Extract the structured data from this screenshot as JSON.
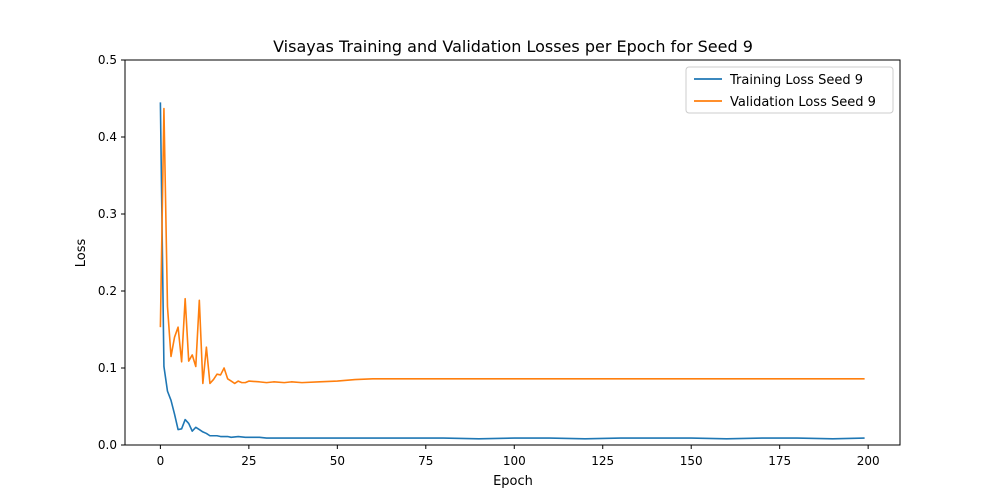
{
  "chart_data": {
    "type": "line",
    "title": "Visayas Training and Validation Losses per Epoch for Seed 9",
    "xlabel": "Epoch",
    "ylabel": "Loss",
    "xlim": [
      -10,
      209
    ],
    "ylim": [
      0.0,
      0.5
    ],
    "xticks": [
      0,
      25,
      50,
      75,
      100,
      125,
      150,
      175,
      200
    ],
    "yticks": [
      0.0,
      0.1,
      0.2,
      0.3,
      0.4,
      0.5
    ],
    "ytick_labels": [
      "0.0",
      "0.1",
      "0.2",
      "0.3",
      "0.4",
      "0.5"
    ],
    "grid": false,
    "legend_position": "top-right",
    "series": [
      {
        "name": "Training Loss Seed 9",
        "color": "#1f77b4",
        "points": [
          [
            0,
            0.445
          ],
          [
            1,
            0.102
          ],
          [
            2,
            0.07
          ],
          [
            3,
            0.058
          ],
          [
            4,
            0.04
          ],
          [
            5,
            0.02
          ],
          [
            6,
            0.021
          ],
          [
            7,
            0.033
          ],
          [
            8,
            0.028
          ],
          [
            9,
            0.018
          ],
          [
            10,
            0.023
          ],
          [
            11,
            0.02
          ],
          [
            12,
            0.017
          ],
          [
            13,
            0.015
          ],
          [
            14,
            0.012
          ],
          [
            15,
            0.012
          ],
          [
            16,
            0.012
          ],
          [
            17,
            0.011
          ],
          [
            18,
            0.011
          ],
          [
            19,
            0.011
          ],
          [
            20,
            0.01
          ],
          [
            22,
            0.011
          ],
          [
            24,
            0.01
          ],
          [
            26,
            0.01
          ],
          [
            28,
            0.01
          ],
          [
            30,
            0.009
          ],
          [
            33,
            0.009
          ],
          [
            36,
            0.009
          ],
          [
            40,
            0.009
          ],
          [
            45,
            0.009
          ],
          [
            50,
            0.009
          ],
          [
            60,
            0.009
          ],
          [
            70,
            0.009
          ],
          [
            80,
            0.009
          ],
          [
            90,
            0.008
          ],
          [
            100,
            0.009
          ],
          [
            110,
            0.009
          ],
          [
            120,
            0.008
          ],
          [
            130,
            0.009
          ],
          [
            140,
            0.009
          ],
          [
            150,
            0.009
          ],
          [
            160,
            0.008
          ],
          [
            170,
            0.009
          ],
          [
            180,
            0.009
          ],
          [
            190,
            0.008
          ],
          [
            199,
            0.009
          ]
        ]
      },
      {
        "name": "Validation Loss Seed 9",
        "color": "#ff7f0e",
        "points": [
          [
            0,
            0.153
          ],
          [
            1,
            0.437
          ],
          [
            2,
            0.18
          ],
          [
            3,
            0.115
          ],
          [
            4,
            0.14
          ],
          [
            5,
            0.153
          ],
          [
            6,
            0.108
          ],
          [
            7,
            0.19
          ],
          [
            8,
            0.109
          ],
          [
            9,
            0.117
          ],
          [
            10,
            0.102
          ],
          [
            11,
            0.188
          ],
          [
            12,
            0.08
          ],
          [
            13,
            0.127
          ],
          [
            14,
            0.08
          ],
          [
            15,
            0.085
          ],
          [
            16,
            0.092
          ],
          [
            17,
            0.091
          ],
          [
            18,
            0.1
          ],
          [
            19,
            0.086
          ],
          [
            20,
            0.083
          ],
          [
            21,
            0.08
          ],
          [
            22,
            0.083
          ],
          [
            23,
            0.081
          ],
          [
            24,
            0.081
          ],
          [
            25,
            0.083
          ],
          [
            28,
            0.082
          ],
          [
            30,
            0.081
          ],
          [
            32,
            0.082
          ],
          [
            35,
            0.081
          ],
          [
            37,
            0.082
          ],
          [
            40,
            0.081
          ],
          [
            45,
            0.082
          ],
          [
            50,
            0.083
          ],
          [
            55,
            0.085
          ],
          [
            60,
            0.086
          ],
          [
            70,
            0.086
          ],
          [
            80,
            0.086
          ],
          [
            100,
            0.086
          ],
          [
            125,
            0.086
          ],
          [
            150,
            0.086
          ],
          [
            175,
            0.086
          ],
          [
            199,
            0.086
          ]
        ]
      }
    ]
  }
}
